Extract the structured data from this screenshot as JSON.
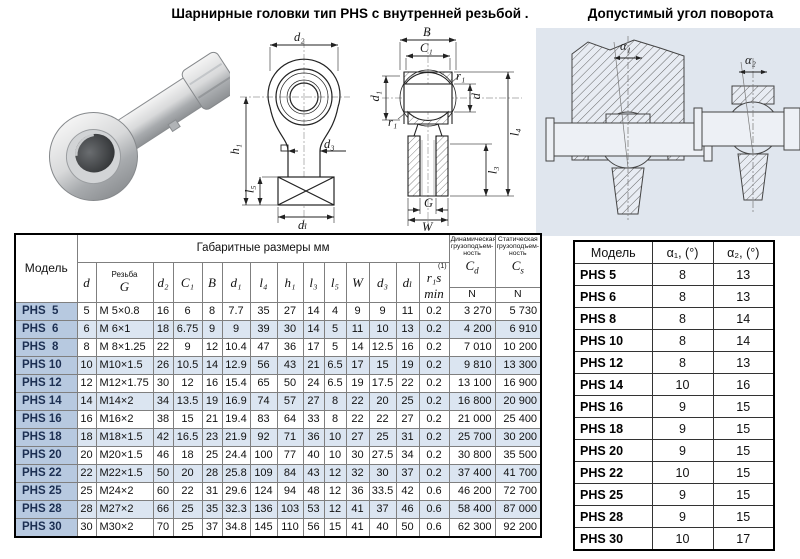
{
  "page": {
    "title_main": "Шарнирные головки тип  PHS с внутренней резьбой .",
    "title_right": "Допустимый угол поворота"
  },
  "main_table": {
    "header": {
      "model": "Модель",
      "group": "Габаритные размеры мм",
      "thread_label": "Резьба",
      "dim_cols": [
        "d",
        "G",
        "d₂",
        "C₁",
        "B",
        "d₁",
        "l₄",
        "h₁",
        "l₃",
        "l₅",
        "W",
        "d₃",
        "dₗ",
        "r₁s min"
      ],
      "rs_sup": "(1)",
      "dynamic_load": "Динамическая грузоподъем- ность",
      "static_load": "Статическая грузоподъем- ность",
      "cd_main": "C",
      "cd_sub": "d",
      "cs_main": "C",
      "cs_sub": "s",
      "unit_n": "N"
    },
    "rows": [
      {
        "model": "PHS  5",
        "values": [
          "5",
          "M 5×0.8",
          "16",
          "6",
          "8",
          "7.7",
          "35",
          "27",
          "14",
          "4",
          "9",
          "9",
          "11",
          "0.2",
          "3 270",
          "5 730"
        ]
      },
      {
        "model": "PHS  6",
        "values": [
          "6",
          "M 6×1",
          "18",
          "6.75",
          "9",
          "9",
          "39",
          "30",
          "14",
          "5",
          "11",
          "10",
          "13",
          "0.2",
          "4 200",
          "6 910"
        ]
      },
      {
        "model": "PHS  8",
        "values": [
          "8",
          "M 8×1.25",
          "22",
          "9",
          "12",
          "10.4",
          "47",
          "36",
          "17",
          "5",
          "14",
          "12.5",
          "16",
          "0.2",
          "7 010",
          "10 200"
        ]
      },
      {
        "model": "PHS 10",
        "values": [
          "10",
          "M10×1.5",
          "26",
          "10.5",
          "14",
          "12.9",
          "56",
          "43",
          "21",
          "6.5",
          "17",
          "15",
          "19",
          "0.2",
          "9 810",
          "13 300"
        ]
      },
      {
        "model": "PHS 12",
        "values": [
          "12",
          "M12×1.75",
          "30",
          "12",
          "16",
          "15.4",
          "65",
          "50",
          "24",
          "6.5",
          "19",
          "17.5",
          "22",
          "0.2",
          "13 100",
          "16 900"
        ]
      },
      {
        "model": "PHS 14",
        "values": [
          "14",
          "M14×2",
          "34",
          "13.5",
          "19",
          "16.9",
          "74",
          "57",
          "27",
          "8",
          "22",
          "20",
          "25",
          "0.2",
          "16 800",
          "20 900"
        ]
      },
      {
        "model": "PHS 16",
        "values": [
          "16",
          "M16×2",
          "38",
          "15",
          "21",
          "19.4",
          "83",
          "64",
          "33",
          "8",
          "22",
          "22",
          "27",
          "0.2",
          "21 000",
          "25 400"
        ]
      },
      {
        "model": "PHS 18",
        "values": [
          "18",
          "M18×1.5",
          "42",
          "16.5",
          "23",
          "21.9",
          "92",
          "71",
          "36",
          "10",
          "27",
          "25",
          "31",
          "0.2",
          "25 700",
          "30 200"
        ]
      },
      {
        "model": "PHS 20",
        "values": [
          "20",
          "M20×1.5",
          "46",
          "18",
          "25",
          "24.4",
          "100",
          "77",
          "40",
          "10",
          "30",
          "27.5",
          "34",
          "0.2",
          "30 800",
          "35 500"
        ]
      },
      {
        "model": "PHS 22",
        "values": [
          "22",
          "M22×1.5",
          "50",
          "20",
          "28",
          "25.8",
          "109",
          "84",
          "43",
          "12",
          "32",
          "30",
          "37",
          "0.2",
          "37 400",
          "41 700"
        ]
      },
      {
        "model": "PHS 25",
        "values": [
          "25",
          "M24×2",
          "60",
          "22",
          "31",
          "29.6",
          "124",
          "94",
          "48",
          "12",
          "36",
          "33.5",
          "42",
          "0.6",
          "46 200",
          "72 700"
        ]
      },
      {
        "model": "PHS 28",
        "values": [
          "28",
          "M27×2",
          "66",
          "25",
          "35",
          "32.3",
          "136",
          "103",
          "53",
          "12",
          "41",
          "37",
          "46",
          "0.6",
          "58 400",
          "87 000"
        ]
      },
      {
        "model": "PHS 30",
        "values": [
          "30",
          "M30×2",
          "70",
          "25",
          "37",
          "34.8",
          "145",
          "110",
          "56",
          "15",
          "41",
          "40",
          "50",
          "0.6",
          "62 300",
          "92 200"
        ]
      }
    ]
  },
  "angle_table": {
    "headers": {
      "model": "Модель",
      "a1": "α₁, (°)",
      "a2": "α₂, (°)"
    },
    "rows": [
      {
        "model": "PHS 5",
        "a1": "8",
        "a2": "13"
      },
      {
        "model": "PHS 6",
        "a1": "8",
        "a2": "13"
      },
      {
        "model": "PHS 8",
        "a1": "8",
        "a2": "14"
      },
      {
        "model": "PHS 10",
        "a1": "8",
        "a2": "14"
      },
      {
        "model": "PHS 12",
        "a1": "8",
        "a2": "13"
      },
      {
        "model": "PHS 14",
        "a1": "10",
        "a2": "16"
      },
      {
        "model": "PHS 16",
        "a1": "9",
        "a2": "15"
      },
      {
        "model": "PHS 18",
        "a1": "9",
        "a2": "15"
      },
      {
        "model": "PHS 20",
        "a1": "9",
        "a2": "15"
      },
      {
        "model": "PHS 22",
        "a1": "10",
        "a2": "15"
      },
      {
        "model": "PHS 25",
        "a1": "9",
        "a2": "15"
      },
      {
        "model": "PHS 28",
        "a1": "9",
        "a2": "15"
      },
      {
        "model": "PHS 30",
        "a1": "10",
        "a2": "17"
      }
    ]
  },
  "drawings": {
    "front": {
      "d2": "d₂",
      "h1": "h₁",
      "d3": "d₃",
      "l5": "l₅",
      "dl": "dₗ"
    },
    "side": {
      "b": "B",
      "c1": "C₁",
      "d1": "d₁",
      "r1": "r₁",
      "d": "d",
      "l4": "l₄",
      "l3": "l₃",
      "g": "G",
      "w": "W"
    },
    "angles": {
      "a1": "α₁",
      "a2": "α₂"
    }
  }
}
